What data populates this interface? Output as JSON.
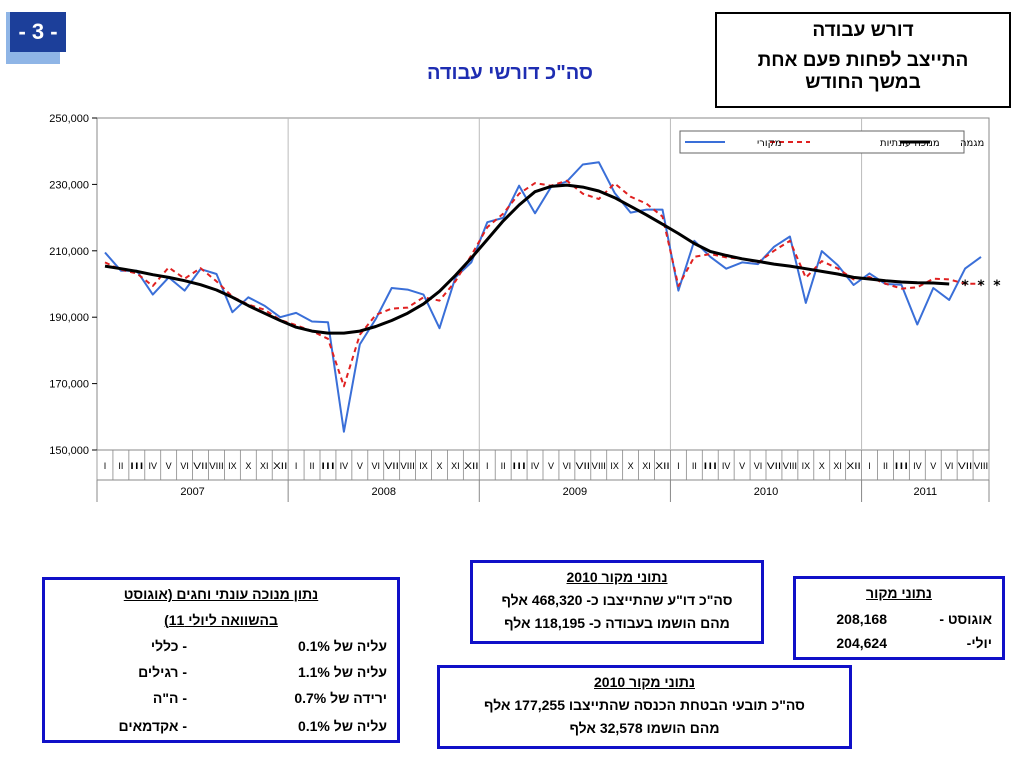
{
  "page": {
    "number": "- 3 -"
  },
  "header": {
    "title": "דורש עבודה",
    "subtitle_line1": "התייצב לפחות פעם אחת",
    "subtitle_line2": "במשך החודש"
  },
  "chart_data": {
    "type": "line",
    "title": "סה\"כ דורשי עבודה",
    "ylim": [
      150000,
      250000
    ],
    "yticks": [
      "150,000",
      "170,000",
      "190,000",
      "210,000",
      "230,000",
      "250,000"
    ],
    "grid": "vertical-years",
    "legend_position": "top-right",
    "months": [
      "I",
      "II",
      "III",
      "IV",
      "V",
      "VI",
      "VII",
      "VIII",
      "IX",
      "X",
      "XI",
      "XII"
    ],
    "years": [
      "2007",
      "2008",
      "2009",
      "2010",
      "2011"
    ],
    "months_2011": 8,
    "series": [
      {
        "name": "מקורי",
        "color": "#3a6fd8",
        "style": "solid",
        "values": [
          209500,
          204000,
          204000,
          196800,
          202000,
          198000,
          204500,
          203000,
          191500,
          196000,
          193500,
          190000,
          191300,
          188700,
          188500,
          155500,
          181800,
          189500,
          198800,
          198300,
          196800,
          186700,
          202000,
          206500,
          218600,
          219900,
          229600,
          221300,
          229200,
          230900,
          236000,
          236700,
          227400,
          221500,
          222400,
          222400,
          198000,
          213000,
          208200,
          204600,
          206500,
          206000,
          211200,
          214300,
          194300,
          209900,
          205700,
          199700,
          203200,
          200000,
          199800,
          187800,
          198800,
          195200,
          204624,
          208168
        ]
      },
      {
        "name": "מנוכה עונתיות",
        "color": "#e02020",
        "style": "dashed",
        "values": [
          206500,
          204300,
          203200,
          199400,
          205000,
          201600,
          204800,
          200800,
          196200,
          193800,
          192300,
          189200,
          187600,
          185800,
          183500,
          169200,
          184700,
          190700,
          192600,
          192900,
          196000,
          195000,
          200800,
          208600,
          217100,
          221200,
          227200,
          230400,
          229600,
          231100,
          227200,
          225600,
          230300,
          226300,
          224200,
          220300,
          199400,
          208200,
          209000,
          208000,
          207600,
          206500,
          210000,
          213000,
          201900,
          206900,
          204700,
          201400,
          202100,
          200100,
          198600,
          199000,
          201600,
          201400,
          200100,
          200100
        ]
      },
      {
        "name": "מגמה",
        "color": "#000000",
        "style": "solid-thick",
        "values": [
          205400,
          204600,
          203800,
          202800,
          202000,
          201000,
          199800,
          198200,
          196000,
          193500,
          191200,
          189000,
          187000,
          185800,
          185200,
          185200,
          185800,
          187200,
          189000,
          191200,
          194000,
          197800,
          202600,
          207800,
          213400,
          219000,
          223800,
          227800,
          229400,
          229800,
          229200,
          228000,
          226000,
          223400,
          220800,
          218000,
          215200,
          212200,
          209800,
          208600,
          207600,
          206800,
          206000,
          205400,
          204600,
          203800,
          203000,
          202000,
          201500,
          201000,
          200600,
          200400,
          200300,
          200000
        ]
      }
    ],
    "markers": {
      "symbol": "*",
      "indices": [
        54,
        55,
        56
      ],
      "value": 200000
    }
  },
  "boxes": {
    "seasonal": {
      "header_line1": "נתון מנוכה עונתי וחגים  (אוגוסט",
      "header_line2": "בהשוואה ליולי  11)",
      "rows": [
        {
          "label": "-  כללי",
          "change": "עליה של  0.1%"
        },
        {
          "label": "- רגילים",
          "change": "עליה של  1.1%"
        },
        {
          "label": "- ה\"ה",
          "change": "ירידה של  0.7%"
        },
        {
          "label": "-  אקדמאים",
          "change": "עליה של  0.1%"
        }
      ]
    },
    "source_2010_a": {
      "header": "נתוני מקור  2010",
      "line1": "סה\"כ דו\"ע שהתייצבו כ- 468,320 אלף",
      "line2": "מהם הושמו בעבודה כ- 118,195 אלף"
    },
    "source_2010_b": {
      "header": "נתוני מקור  2010",
      "line1": "סה\"כ תובעי הבטחת הכנסה שהתייצבו  177,255 אלף",
      "line2": "מהם הושמו  32,578 אלף"
    },
    "source_current": {
      "header": "נתוני מקור",
      "rows": [
        {
          "label": "אוגוסט -",
          "value": "208,168"
        },
        {
          "label": "יולי-",
          "value": "204,624"
        }
      ]
    }
  }
}
